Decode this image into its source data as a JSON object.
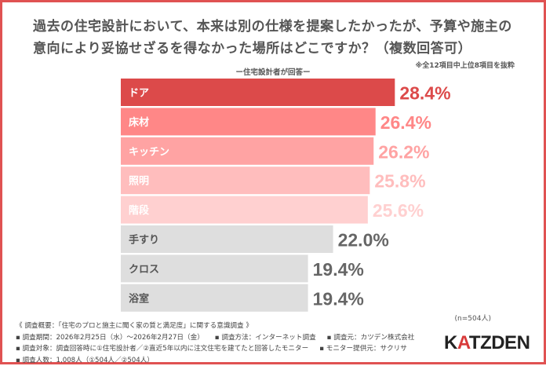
{
  "title": "過去の住宅設計において、本来は別の仕様を提案したかったが、予算や施主の意向により妥協せざるを得なかった場所はどこですか？（複数回答可）",
  "note": "※全12項目中上位8項目を抜粋",
  "subtitle": "ー住宅設計者が回答ー",
  "sample": "(n=504人)",
  "footer": {
    "overview": "《 調査概要：「住宅のプロと施主に聞く家の質と満足度」に関する意識調査 》",
    "period": "▪ 調査期間：2026年2月25日（水）〜2026年2月27日（金）",
    "method": "▪ 調査方法：インターネット調査",
    "source": "▪ 調査元：カツデン株式会社",
    "target": "▪ 調査対象：調査回答時に①住宅設計者／②直近5年以内に注文住宅を建てたと回答したモニター",
    "provider": "▪ モニター提供元：サクリサ",
    "count": "▪ 調査人数：1,008人（①504人／②504人）"
  },
  "logo": "KATZDEN",
  "colors": {
    "border": "#e05252",
    "value_gray": "#666666"
  },
  "chart_data": {
    "type": "bar",
    "orientation": "horizontal",
    "categories": [
      "ドア",
      "床材",
      "キッチン",
      "照明",
      "階段",
      "手すり",
      "クロス",
      "浴室"
    ],
    "values": [
      28.4,
      26.4,
      26.2,
      25.8,
      25.6,
      22.0,
      19.4,
      19.4
    ],
    "value_labels": [
      "28.4%",
      "26.4%",
      "26.2%",
      "25.8%",
      "25.6%",
      "22.0%",
      "19.4%",
      "19.4%"
    ],
    "bar_colors": [
      "#dc4a4a",
      "#ff8787",
      "#ffa3a3",
      "#ffbdbd",
      "#ffd0d0",
      "#dedede",
      "#dedede",
      "#dedede"
    ],
    "label_colors": [
      "#dc4a4a",
      "#ff8787",
      "#ffa3a3",
      "#ffbdbd",
      "#ffd0d0",
      "#666666",
      "#666666",
      "#666666"
    ],
    "category_label_colors": [
      "#ffffff",
      "#ffffff",
      "#ffffff",
      "#ffffff",
      "#ffffff",
      "#555555",
      "#555555",
      "#555555"
    ],
    "unit": "%",
    "grid": false
  }
}
